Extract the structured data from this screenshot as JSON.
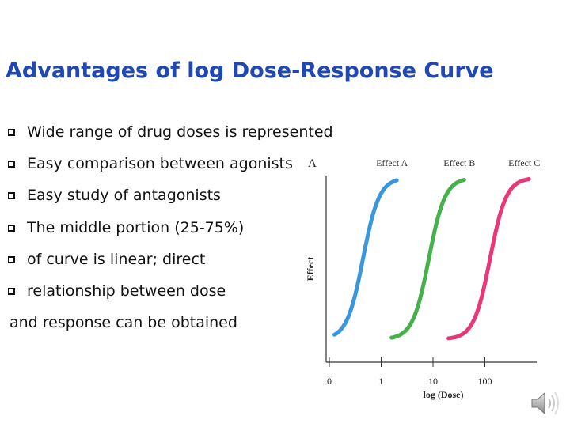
{
  "slide": {
    "title": "Advantages of log Dose-Response Curve",
    "bullets": [
      "Wide range of drug doses is represented",
      "Easy comparison between agonists",
      "Easy study of antagonists",
      "The middle portion (25-75%)",
      "of curve is linear; direct",
      "relationship between dose"
    ],
    "continuation": "and response can be obtained"
  },
  "speaker_icon": "speaker-icon",
  "chart_data": {
    "type": "line",
    "panel_label": "A",
    "xlabel": "log (Dose)",
    "ylabel": "Effect",
    "x_ticks": [
      "0",
      "1",
      "10",
      "100"
    ],
    "x_tick_positions": [
      0,
      1,
      2,
      3
    ],
    "xlim": [
      0,
      4
    ],
    "ylim": [
      0,
      100
    ],
    "grid": false,
    "legend": "series labels above each curve",
    "series": [
      {
        "name": "Effect A",
        "color": "#3a97dc",
        "x": [
          0.1,
          0.9,
          1.3
        ],
        "y": [
          5,
          50,
          95
        ],
        "midpoint": 0.65
      },
      {
        "name": "Effect B",
        "color": "#46b04a",
        "x": [
          1.2,
          2.0,
          2.6
        ],
        "y": [
          5,
          50,
          95
        ],
        "midpoint": 1.92
      },
      {
        "name": "Effect C",
        "color": "#e8387a",
        "x": [
          2.3,
          3.2,
          3.85
        ],
        "y": [
          5,
          50,
          95
        ],
        "midpoint": 3.1
      }
    ]
  }
}
